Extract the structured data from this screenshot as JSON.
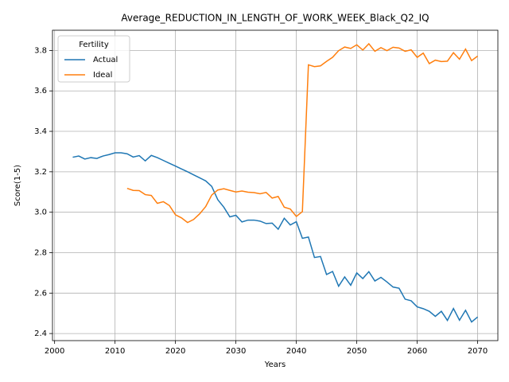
{
  "chart_data": {
    "type": "line",
    "title": "Average_REDUCTION_IN_LENGTH_OF_WORK_WEEK_Black_Q2_IQ",
    "xlabel": "Years",
    "ylabel": "Score(1-5)",
    "x": [
      2003,
      2004,
      2005,
      2006,
      2007,
      2008,
      2009,
      2010,
      2011,
      2012,
      2013,
      2014,
      2015,
      2016,
      2017,
      2018,
      2019,
      2020,
      2021,
      2022,
      2023,
      2024,
      2025,
      2026,
      2027,
      2028,
      2029,
      2030,
      2031,
      2032,
      2033,
      2034,
      2035,
      2036,
      2037,
      2038,
      2039,
      2040,
      2041,
      2042,
      2043,
      2044,
      2045,
      2046,
      2047,
      2048,
      2049,
      2050,
      2051,
      2052,
      2053,
      2054,
      2055,
      2056,
      2057,
      2058,
      2059,
      2060,
      2061,
      2062,
      2063,
      2064,
      2065,
      2066,
      2067,
      2068,
      2069,
      2070
    ],
    "series": [
      {
        "name": "Actual",
        "color": "#1f77b4",
        "values": [
          3.272,
          3.278,
          3.263,
          3.27,
          3.266,
          3.278,
          3.285,
          3.294,
          3.294,
          3.289,
          3.273,
          3.28,
          3.254,
          3.281,
          3.27,
          3.256,
          3.242,
          3.228,
          3.214,
          3.2,
          3.185,
          3.17,
          3.155,
          3.128,
          3.062,
          3.025,
          2.977,
          2.985,
          2.952,
          2.961,
          2.961,
          2.956,
          2.944,
          2.946,
          2.916,
          2.97,
          2.937,
          2.953,
          2.871,
          2.877,
          2.776,
          2.781,
          2.692,
          2.707,
          2.634,
          2.68,
          2.639,
          2.7,
          2.672,
          2.706,
          2.66,
          2.678,
          2.655,
          2.63,
          2.624,
          2.57,
          2.562,
          2.532,
          2.523,
          2.51,
          2.485,
          2.51,
          2.465,
          2.524,
          2.466,
          2.515,
          2.457,
          2.482
        ]
      },
      {
        "name": "Ideal",
        "color": "#ff7f0e",
        "values": [
          null,
          null,
          null,
          null,
          null,
          null,
          null,
          null,
          null,
          3.118,
          3.108,
          3.107,
          3.087,
          3.083,
          3.044,
          3.052,
          3.033,
          2.987,
          2.972,
          2.949,
          2.964,
          2.992,
          3.028,
          3.085,
          3.11,
          3.116,
          3.108,
          3.1,
          3.105,
          3.099,
          3.097,
          3.091,
          3.098,
          3.07,
          3.078,
          3.025,
          3.016,
          2.979,
          3.003,
          3.729,
          3.72,
          3.724,
          3.746,
          3.766,
          3.799,
          3.817,
          3.81,
          3.828,
          3.802,
          3.833,
          3.796,
          3.814,
          3.799,
          3.816,
          3.812,
          3.796,
          3.803,
          3.766,
          3.787,
          3.735,
          3.752,
          3.745,
          3.747,
          3.789,
          3.757,
          3.807,
          3.75,
          3.772
        ]
      }
    ],
    "xlim": [
      1999.65,
      2073.35
    ],
    "xticks": [
      2000,
      2010,
      2020,
      2030,
      2040,
      2050,
      2060,
      2070
    ],
    "ylim": [
      2.365,
      3.9
    ],
    "yticks": [
      2.4,
      2.6,
      2.8,
      {
        "value": 3,
        "label": "3.0"
      },
      3.2,
      3.4,
      3.6,
      3.8
    ],
    "grid": true,
    "legend_title": "Fertility",
    "legend_loc": "upper left"
  }
}
